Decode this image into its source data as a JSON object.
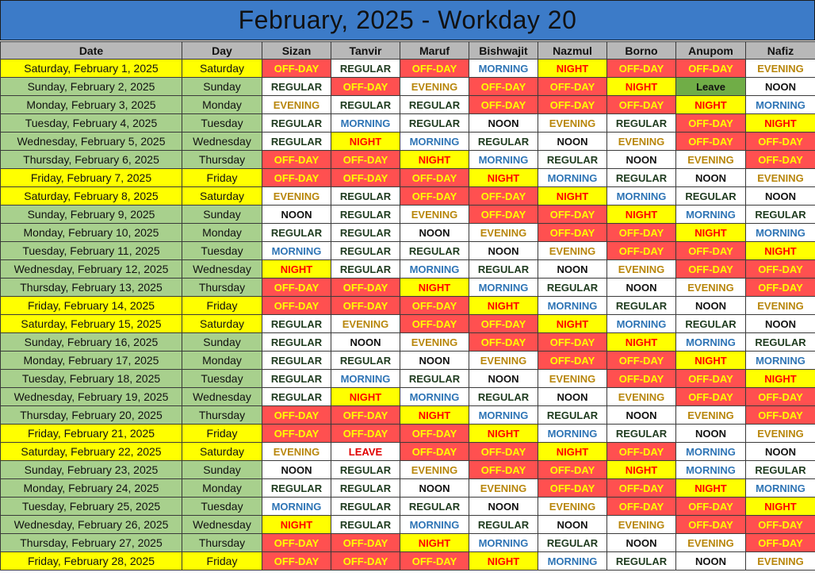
{
  "title": "February, 2025 - Workday 20",
  "headers": [
    "Date",
    "Day",
    "Sizan",
    "Tanvir",
    "Maruf",
    "Bishwajit",
    "Nazmul",
    "Borno",
    "Anupom",
    "Nafiz"
  ],
  "colors": {
    "title_bg": "#3c7bc8",
    "weekday_bg": "#a8d08d",
    "weekend_bg": "#ffff00",
    "off_day_bg": "#ff5050",
    "night_bg": "#ffff00",
    "leave_bg": "#70ad47"
  },
  "rows": [
    {
      "date": "Saturday, February 1, 2025",
      "day": "Saturday",
      "weekend": true,
      "shifts": [
        "OFF-DAY",
        "REGULAR",
        "OFF-DAY",
        "MORNING",
        "NIGHT",
        "OFF-DAY",
        "OFF-DAY",
        "EVENING"
      ]
    },
    {
      "date": "Sunday, February 2, 2025",
      "day": "Sunday",
      "weekend": false,
      "shifts": [
        "REGULAR",
        "OFF-DAY",
        "EVENING",
        "OFF-DAY",
        "OFF-DAY",
        "NIGHT",
        "Leave",
        "NOON"
      ]
    },
    {
      "date": "Monday, February 3, 2025",
      "day": "Monday",
      "weekend": false,
      "shifts": [
        "EVENING",
        "REGULAR",
        "REGULAR",
        "OFF-DAY",
        "OFF-DAY",
        "OFF-DAY",
        "NIGHT",
        "MORNING"
      ]
    },
    {
      "date": "Tuesday, February 4, 2025",
      "day": "Tuesday",
      "weekend": false,
      "shifts": [
        "REGULAR",
        "MORNING",
        "REGULAR",
        "NOON",
        "EVENING",
        "REGULAR",
        "OFF-DAY",
        "NIGHT"
      ]
    },
    {
      "date": "Wednesday, February 5, 2025",
      "day": "Wednesday",
      "weekend": false,
      "shifts": [
        "REGULAR",
        "NIGHT",
        "MORNING",
        "REGULAR",
        "NOON",
        "EVENING",
        "OFF-DAY",
        "OFF-DAY"
      ]
    },
    {
      "date": "Thursday, February 6, 2025",
      "day": "Thursday",
      "weekend": false,
      "shifts": [
        "OFF-DAY",
        "OFF-DAY",
        "NIGHT",
        "MORNING",
        "REGULAR",
        "NOON",
        "EVENING",
        "OFF-DAY"
      ]
    },
    {
      "date": "Friday, February 7, 2025",
      "day": "Friday",
      "weekend": true,
      "shifts": [
        "OFF-DAY",
        "OFF-DAY",
        "OFF-DAY",
        "NIGHT",
        "MORNING",
        "REGULAR",
        "NOON",
        "EVENING"
      ]
    },
    {
      "date": "Saturday, February 8, 2025",
      "day": "Saturday",
      "weekend": true,
      "shifts": [
        "EVENING",
        "REGULAR",
        "OFF-DAY",
        "OFF-DAY",
        "NIGHT",
        "MORNING",
        "REGULAR",
        "NOON"
      ]
    },
    {
      "date": "Sunday, February 9, 2025",
      "day": "Sunday",
      "weekend": false,
      "shifts": [
        "NOON",
        "REGULAR",
        "EVENING",
        "OFF-DAY",
        "OFF-DAY",
        "NIGHT",
        "MORNING",
        "REGULAR"
      ]
    },
    {
      "date": "Monday, February 10, 2025",
      "day": "Monday",
      "weekend": false,
      "shifts": [
        "REGULAR",
        "REGULAR",
        "NOON",
        "EVENING",
        "OFF-DAY",
        "OFF-DAY",
        "NIGHT",
        "MORNING"
      ]
    },
    {
      "date": "Tuesday, February 11, 2025",
      "day": "Tuesday",
      "weekend": false,
      "shifts": [
        "MORNING",
        "REGULAR",
        "REGULAR",
        "NOON",
        "EVENING",
        "OFF-DAY",
        "OFF-DAY",
        "NIGHT"
      ]
    },
    {
      "date": "Wednesday, February 12, 2025",
      "day": "Wednesday",
      "weekend": false,
      "shifts": [
        "NIGHT",
        "REGULAR",
        "MORNING",
        "REGULAR",
        "NOON",
        "EVENING",
        "OFF-DAY",
        "OFF-DAY"
      ]
    },
    {
      "date": "Thursday, February 13, 2025",
      "day": "Thursday",
      "weekend": false,
      "shifts": [
        "OFF-DAY",
        "OFF-DAY",
        "NIGHT",
        "MORNING",
        "REGULAR",
        "NOON",
        "EVENING",
        "OFF-DAY"
      ]
    },
    {
      "date": "Friday, February 14, 2025",
      "day": "Friday",
      "weekend": true,
      "shifts": [
        "OFF-DAY",
        "OFF-DAY",
        "OFF-DAY",
        "NIGHT",
        "MORNING",
        "REGULAR",
        "NOON",
        "EVENING"
      ]
    },
    {
      "date": "Saturday, February 15, 2025",
      "day": "Saturday",
      "weekend": true,
      "shifts": [
        "REGULAR",
        "EVENING",
        "OFF-DAY",
        "OFF-DAY",
        "NIGHT",
        "MORNING",
        "REGULAR",
        "NOON"
      ]
    },
    {
      "date": "Sunday, February 16, 2025",
      "day": "Sunday",
      "weekend": false,
      "shifts": [
        "REGULAR",
        "NOON",
        "EVENING",
        "OFF-DAY",
        "OFF-DAY",
        "NIGHT",
        "MORNING",
        "REGULAR"
      ]
    },
    {
      "date": "Monday, February 17, 2025",
      "day": "Monday",
      "weekend": false,
      "shifts": [
        "REGULAR",
        "REGULAR",
        "NOON",
        "EVENING",
        "OFF-DAY",
        "OFF-DAY",
        "NIGHT",
        "MORNING"
      ]
    },
    {
      "date": "Tuesday, February 18, 2025",
      "day": "Tuesday",
      "weekend": false,
      "shifts": [
        "REGULAR",
        "MORNING",
        "REGULAR",
        "NOON",
        "EVENING",
        "OFF-DAY",
        "OFF-DAY",
        "NIGHT"
      ]
    },
    {
      "date": "Wednesday, February 19, 2025",
      "day": "Wednesday",
      "weekend": false,
      "shifts": [
        "REGULAR",
        "NIGHT",
        "MORNING",
        "REGULAR",
        "NOON",
        "EVENING",
        "OFF-DAY",
        "OFF-DAY"
      ]
    },
    {
      "date": "Thursday, February 20, 2025",
      "day": "Thursday",
      "weekend": false,
      "shifts": [
        "OFF-DAY",
        "OFF-DAY",
        "NIGHT",
        "MORNING",
        "REGULAR",
        "NOON",
        "EVENING",
        "OFF-DAY"
      ]
    },
    {
      "date": "Friday, February 21, 2025",
      "day": "Friday",
      "weekend": true,
      "shifts": [
        "OFF-DAY",
        "OFF-DAY",
        "OFF-DAY",
        "NIGHT",
        "MORNING",
        "REGULAR",
        "NOON",
        "EVENING"
      ]
    },
    {
      "date": "Saturday, February 22, 2025",
      "day": "Saturday",
      "weekend": true,
      "shifts": [
        "EVENING",
        "LEAVE",
        "OFF-DAY",
        "OFF-DAY",
        "NIGHT",
        "OFF-DAY",
        "MORNING",
        "NOON"
      ]
    },
    {
      "date": "Sunday, February 23, 2025",
      "day": "Sunday",
      "weekend": false,
      "shifts": [
        "NOON",
        "REGULAR",
        "EVENING",
        "OFF-DAY",
        "OFF-DAY",
        "NIGHT",
        "MORNING",
        "REGULAR"
      ]
    },
    {
      "date": "Monday, February 24, 2025",
      "day": "Monday",
      "weekend": false,
      "shifts": [
        "REGULAR",
        "REGULAR",
        "NOON",
        "EVENING",
        "OFF-DAY",
        "OFF-DAY",
        "NIGHT",
        "MORNING"
      ]
    },
    {
      "date": "Tuesday, February 25, 2025",
      "day": "Tuesday",
      "weekend": false,
      "shifts": [
        "MORNING",
        "REGULAR",
        "REGULAR",
        "NOON",
        "EVENING",
        "OFF-DAY",
        "OFF-DAY",
        "NIGHT"
      ]
    },
    {
      "date": "Wednesday, February 26, 2025",
      "day": "Wednesday",
      "weekend": false,
      "shifts": [
        "NIGHT",
        "REGULAR",
        "MORNING",
        "REGULAR",
        "NOON",
        "EVENING",
        "OFF-DAY",
        "OFF-DAY"
      ]
    },
    {
      "date": "Thursday, February 27, 2025",
      "day": "Thursday",
      "weekend": false,
      "shifts": [
        "OFF-DAY",
        "OFF-DAY",
        "NIGHT",
        "MORNING",
        "REGULAR",
        "NOON",
        "EVENING",
        "OFF-DAY"
      ]
    },
    {
      "date": "Friday, February 28, 2025",
      "day": "Friday",
      "weekend": true,
      "shifts": [
        "OFF-DAY",
        "OFF-DAY",
        "OFF-DAY",
        "NIGHT",
        "MORNING",
        "REGULAR",
        "NOON",
        "EVENING"
      ]
    }
  ]
}
